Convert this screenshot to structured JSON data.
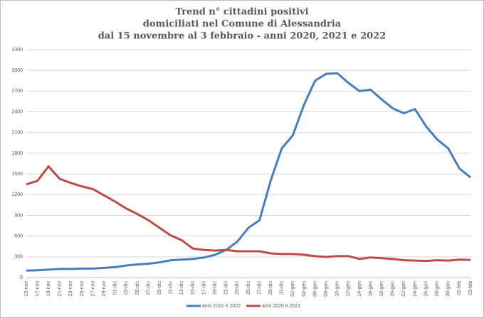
{
  "chart_data": {
    "type": "line",
    "title": [
      "Trend n° cittadini positivi",
      "domiciliati nel Comune di Alessandria",
      "dal 15 novembre al 3 febbraio - anni 2020, 2021 e 2022"
    ],
    "categories": [
      "15-nov",
      "17-nov",
      "19-nov",
      "21-nov",
      "23-nov",
      "25-nov",
      "27-nov",
      "29-nov",
      "01-dic",
      "03-dic",
      "05-dic",
      "07-dic",
      "09-dic",
      "11-dic",
      "13-dic",
      "15-dic",
      "17-dic",
      "19-dic",
      "21-dic",
      "23-dic",
      "25-dic",
      "27-dic",
      "29-dic",
      "31-dic",
      "02-gen",
      "04-gen",
      "06-gen",
      "08-gen",
      "10-gen",
      "12-gen",
      "14-gen",
      "16-gen",
      "18-gen",
      "20-gen",
      "22-gen",
      "24-gen",
      "26-gen",
      "28-gen",
      "30-gen",
      "01-feb",
      "03-feb"
    ],
    "series": [
      {
        "name": "anni 2021 e 2022",
        "color": "#4a7ebb",
        "values": [
          100,
          105,
          115,
          125,
          125,
          130,
          130,
          140,
          150,
          175,
          190,
          200,
          220,
          250,
          260,
          270,
          290,
          330,
          400,
          520,
          720,
          830,
          1400,
          1870,
          2060,
          2500,
          2850,
          2950,
          2960,
          2820,
          2700,
          2720,
          2580,
          2450,
          2380,
          2440,
          2190,
          2000,
          1870,
          1580,
          1450
        ]
      },
      {
        "name": "anni 2020 e 2021",
        "color": "#be4b48",
        "values": [
          1350,
          1400,
          1610,
          1430,
          1370,
          1320,
          1280,
          1190,
          1100,
          1000,
          920,
          830,
          720,
          610,
          540,
          420,
          400,
          390,
          400,
          380,
          380,
          380,
          350,
          340,
          340,
          330,
          310,
          300,
          310,
          310,
          270,
          290,
          280,
          270,
          250,
          245,
          240,
          250,
          245,
          260,
          255
        ]
      }
    ],
    "ylim": [
      0,
      3300
    ],
    "yticks": [
      0,
      300,
      600,
      900,
      1200,
      1500,
      1800,
      2100,
      2400,
      2700,
      3000,
      3300
    ],
    "grid": true
  }
}
